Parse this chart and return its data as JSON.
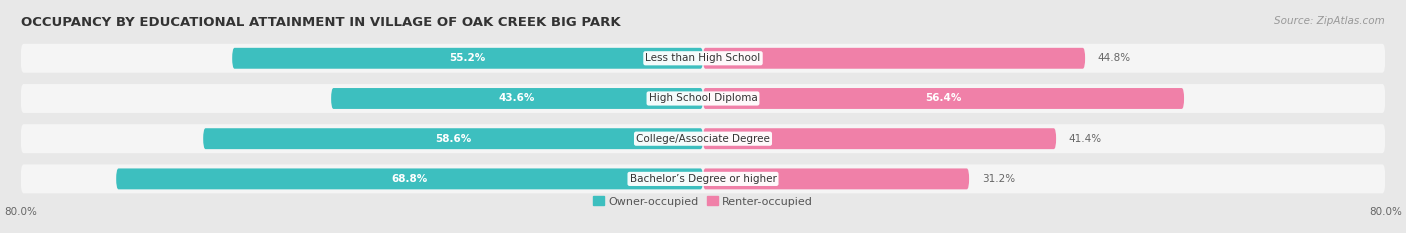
{
  "title": "OCCUPANCY BY EDUCATIONAL ATTAINMENT IN VILLAGE OF OAK CREEK BIG PARK",
  "source": "Source: ZipAtlas.com",
  "categories": [
    "Less than High School",
    "High School Diploma",
    "College/Associate Degree",
    "Bachelor’s Degree or higher"
  ],
  "owner_values": [
    55.2,
    43.6,
    58.6,
    68.8
  ],
  "renter_values": [
    44.8,
    56.4,
    41.4,
    31.2
  ],
  "owner_color": "#3DBFBF",
  "renter_color": "#F080A8",
  "owner_label": "Owner-occupied",
  "renter_label": "Renter-occupied",
  "xlim_left": -80,
  "xlim_right": 80,
  "xtick_left_pos": -80,
  "xtick_right_pos": 80,
  "xtick_left_label": "80.0%",
  "xtick_right_label": "80.0%",
  "background_color": "#e8e8e8",
  "bar_bg_color": "#f5f5f5",
  "title_fontsize": 9.5,
  "source_fontsize": 7.5,
  "value_fontsize": 7.5,
  "category_fontsize": 7.5,
  "legend_fontsize": 8
}
